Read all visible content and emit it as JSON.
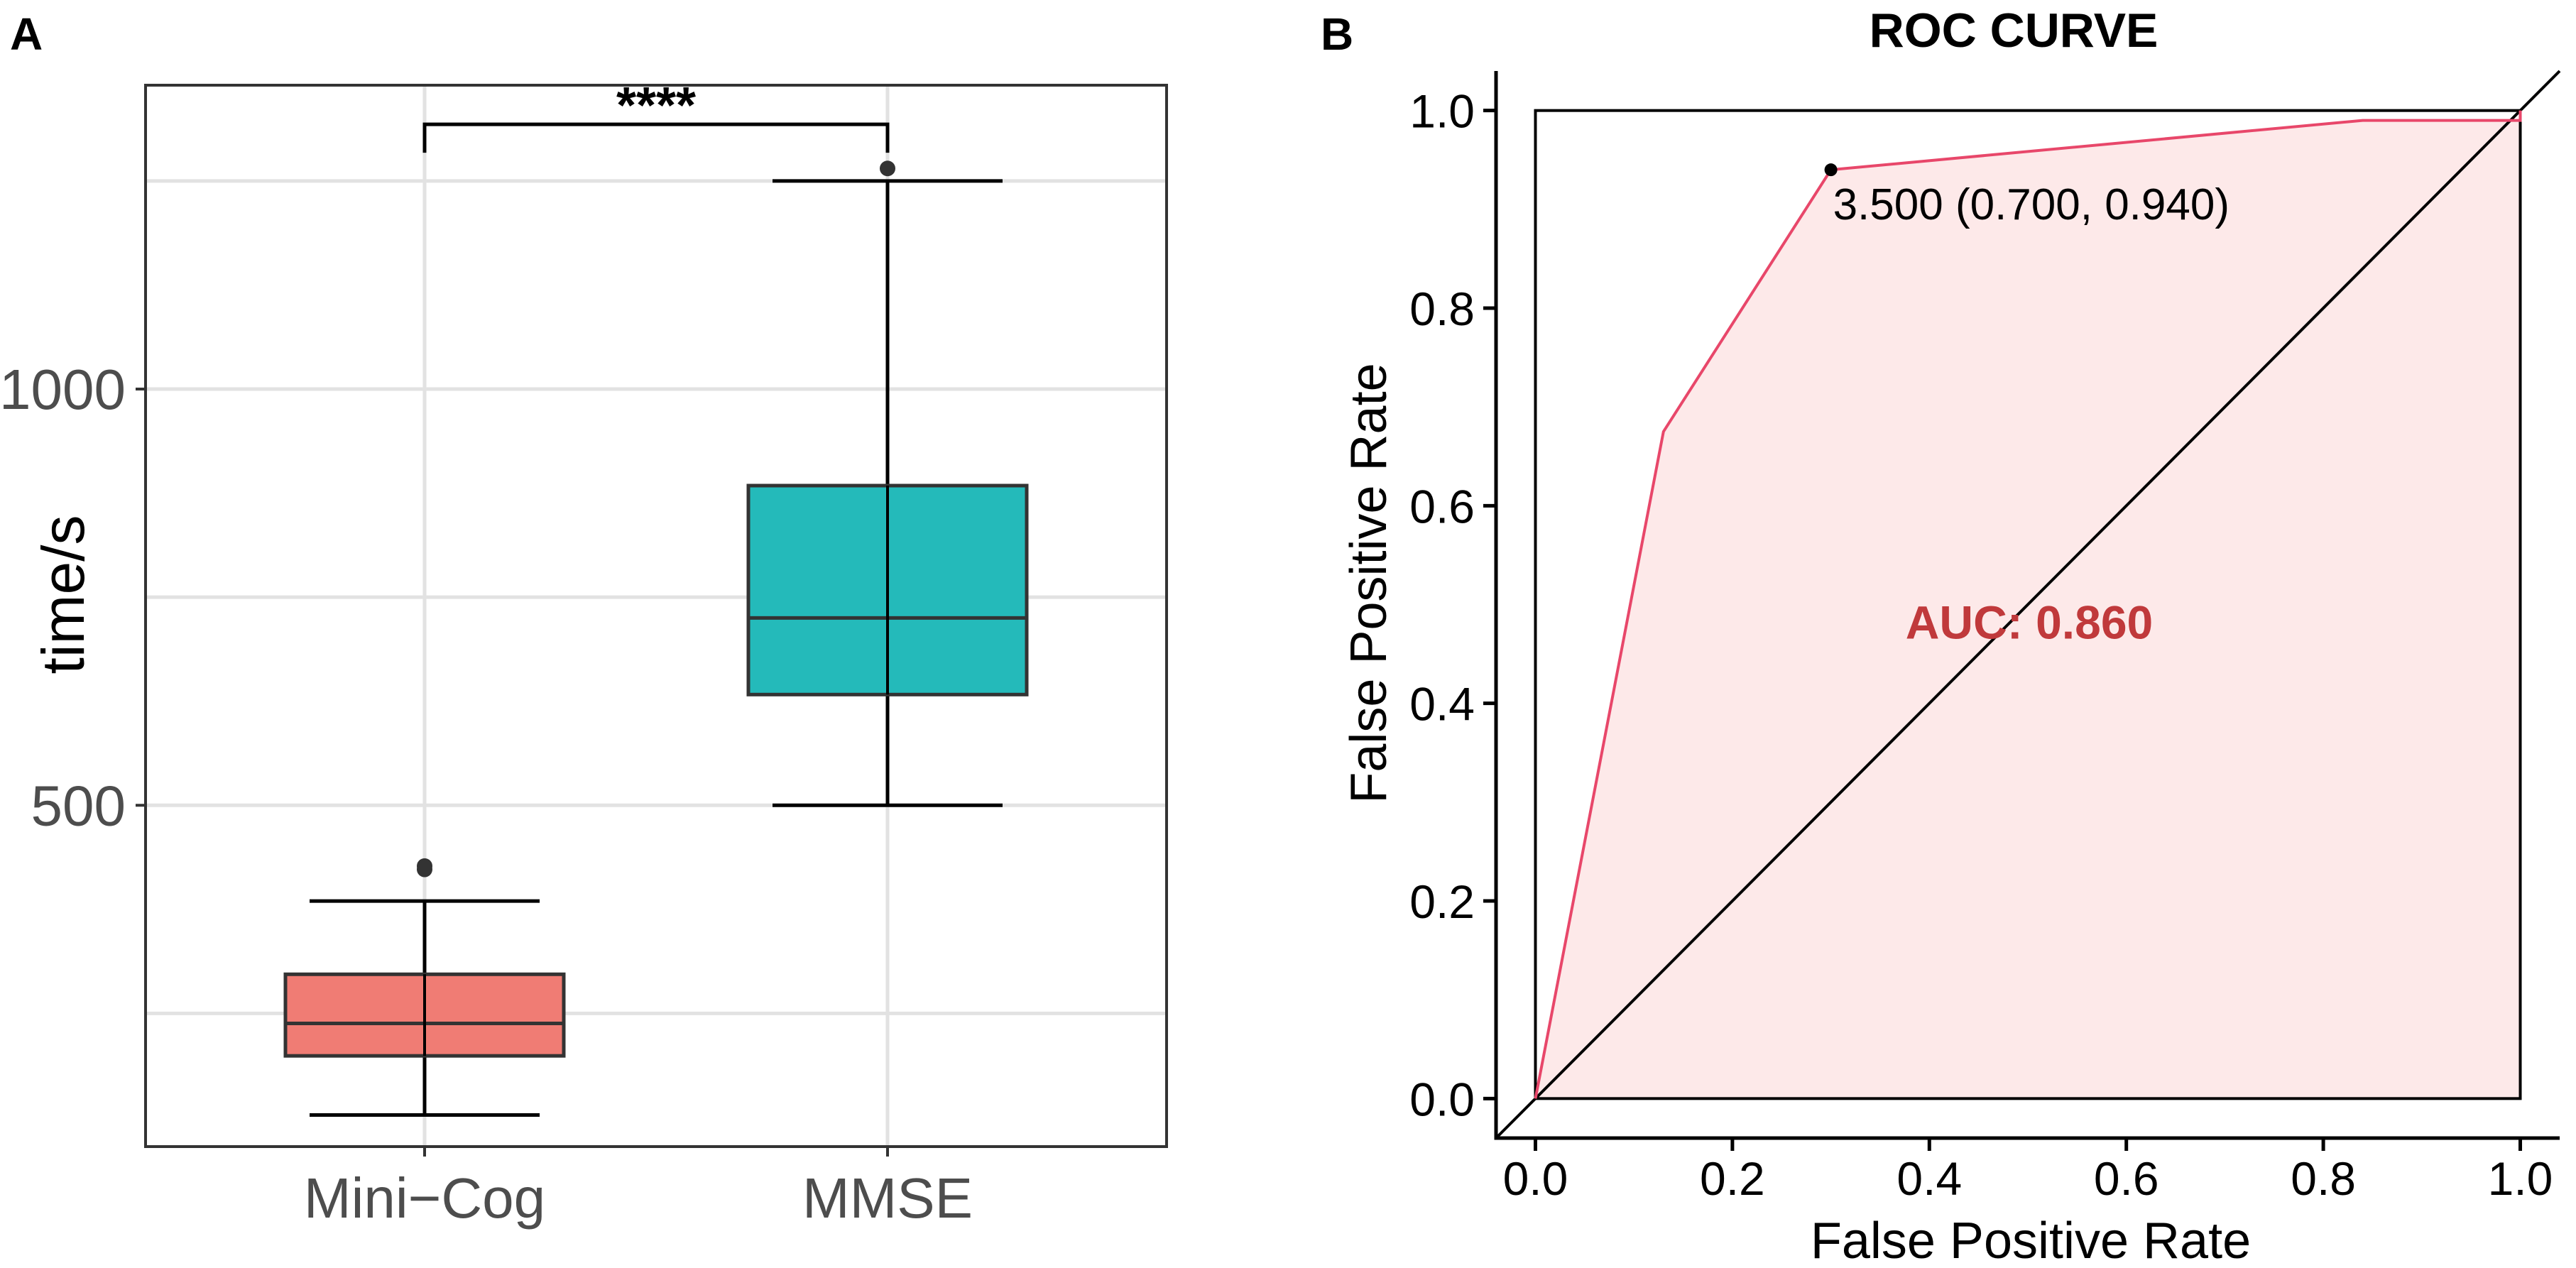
{
  "panels": {
    "a": {
      "letter": "A"
    },
    "b": {
      "letter": "B"
    }
  },
  "chart_data": [
    {
      "type": "box",
      "ylabel": "time/s",
      "xlabel": "",
      "categories": [
        "Mini−Cog",
        "MMSE"
      ],
      "ylim": [
        90,
        1365
      ],
      "yticks": [
        500,
        1000
      ],
      "yminor_gridlines": [
        250,
        750,
        1250
      ],
      "grid": true,
      "boxes": [
        {
          "name": "Mini−Cog",
          "whisker_low": 128,
          "q1": 199,
          "median": 238,
          "q3": 297,
          "whisker_high": 385,
          "outliers": [
            423,
            427
          ],
          "color": "#F07C74"
        },
        {
          "name": "MMSE",
          "whisker_low": 500,
          "q1": 633,
          "median": 725,
          "q3": 884,
          "whisker_high": 1250,
          "outliers": [
            1265
          ],
          "color": "#24BABA"
        }
      ],
      "significance": {
        "label": "****",
        "between": [
          "Mini−Cog",
          "MMSE"
        ],
        "y": 1318
      }
    },
    {
      "type": "line",
      "title": "ROC CURVE",
      "xlabel": "False Positive Rate",
      "ylabel": "False Positive Rate",
      "xlim": [
        -0.04,
        1.04
      ],
      "ylim": [
        -0.04,
        1.04
      ],
      "xticks": [
        0.0,
        0.2,
        0.4,
        0.6,
        0.8,
        1.0
      ],
      "yticks": [
        0.0,
        0.2,
        0.4,
        0.6,
        0.8,
        1.0
      ],
      "xtick_labels": [
        "0.0",
        "0.2",
        "0.4",
        "0.6",
        "0.8",
        "1.0"
      ],
      "ytick_labels": [
        "0.0",
        "0.2",
        "0.4",
        "0.6",
        "0.8",
        "1.0"
      ],
      "series": [
        {
          "name": "ROC",
          "color": "#E8476A",
          "fill": "#FDE9E9",
          "x": [
            0.0,
            0.13,
            0.3,
            0.84,
            1.0,
            1.0
          ],
          "y": [
            0.0,
            0.675,
            0.94,
            0.99,
            0.99,
            1.0
          ]
        },
        {
          "name": "reference",
          "color": "#000000",
          "x": [
            -0.04,
            1.04
          ],
          "y": [
            -0.04,
            1.04
          ]
        }
      ],
      "frame": {
        "x": [
          0.0,
          1.0
        ],
        "y": [
          0.0,
          1.0
        ]
      },
      "best_threshold": {
        "x": 0.3,
        "y": 0.94,
        "label": "3.500 (0.700, 0.940)"
      },
      "auc": {
        "label": "AUC: 0.860",
        "x": 0.5,
        "y": 0.48,
        "color": "#C0393B"
      }
    }
  ]
}
